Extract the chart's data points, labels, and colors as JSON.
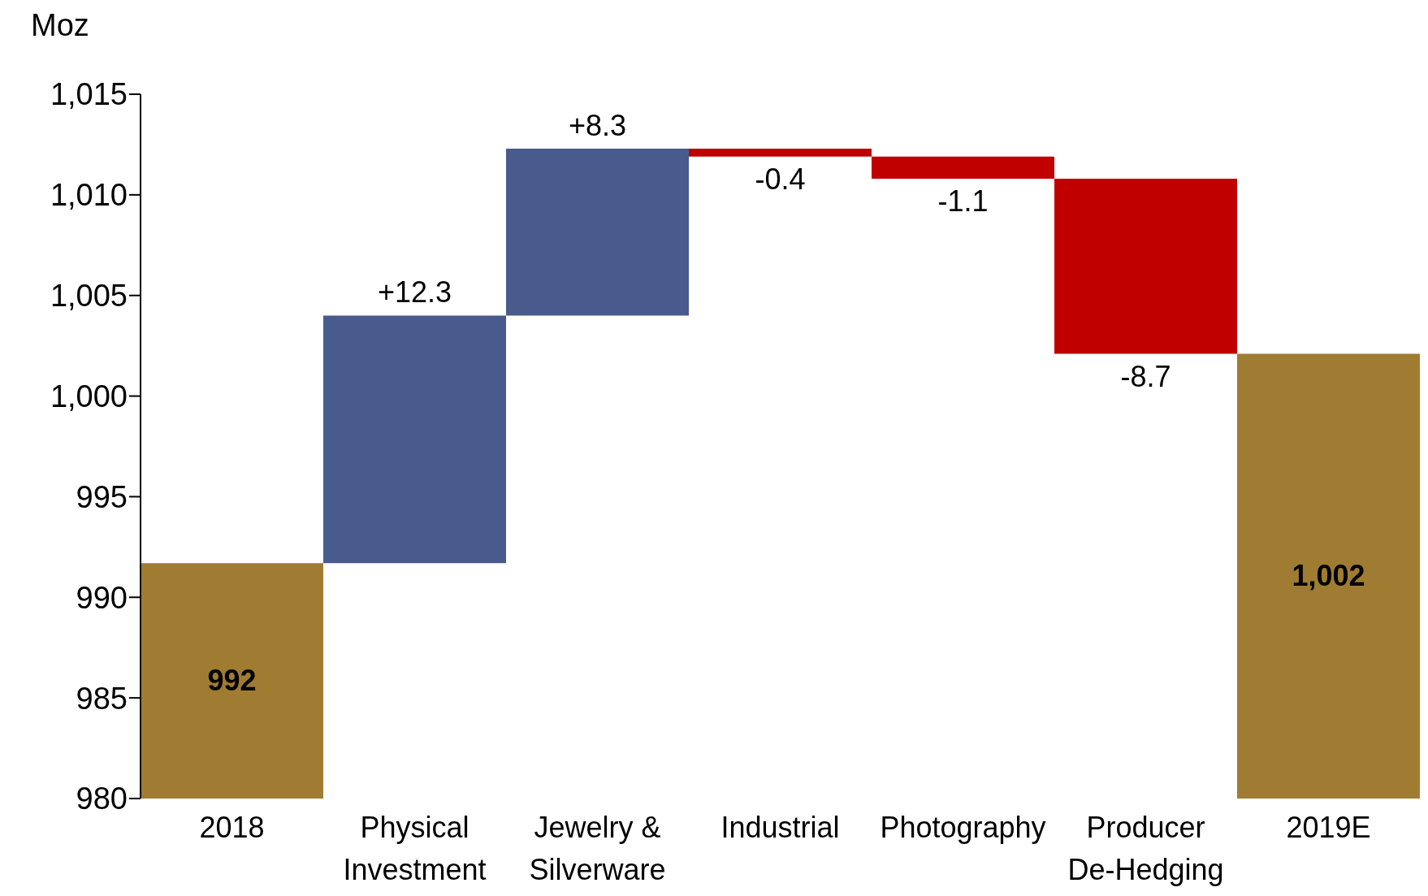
{
  "chart_data": {
    "type": "bar",
    "ylabel": "Moz",
    "categories": [
      "2018",
      "Physical Investment",
      "Jewelry & Silverware",
      "Industrial",
      "Photography",
      "Producer De-Hedging",
      "2019E"
    ],
    "values": [
      991.7,
      12.3,
      8.3,
      -0.4,
      -1.1,
      -8.7,
      1002.1
    ],
    "base": [
      null,
      991.7,
      1004.0,
      1012.3,
      1011.9,
      1010.8,
      null
    ],
    "colors": [
      "#a07c32",
      "#485b8c",
      "#485b8c",
      "#c00000",
      "#c00000",
      "#c00000",
      "#a07c32"
    ],
    "value_labels": [
      "992",
      "+12.3",
      "+8.3",
      "-0.4",
      "-1.1",
      "-8.7",
      "1,002"
    ],
    "ylim": [
      980,
      1015
    ],
    "yticks": [
      980,
      985,
      990,
      995,
      {
        "value": 1000,
        "label": "1,000"
      },
      {
        "value": 1005,
        "label": "1,005"
      },
      {
        "value": 1010,
        "label": "1,010"
      },
      {
        "value": 1015,
        "label": "1,015"
      }
    ],
    "grid": false,
    "legend": false
  }
}
